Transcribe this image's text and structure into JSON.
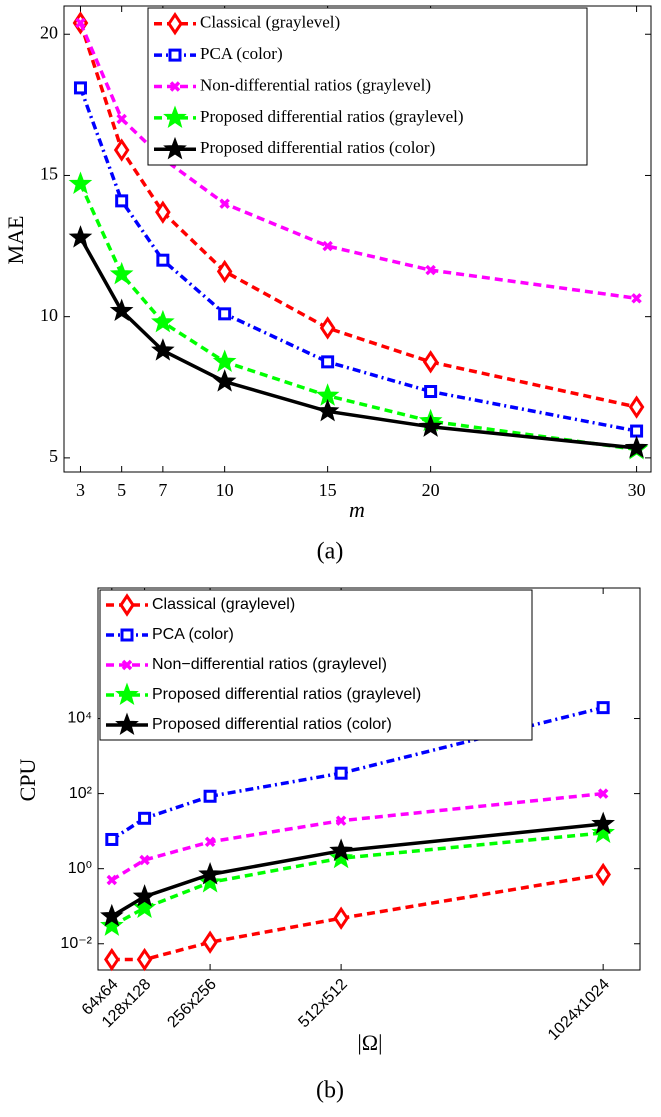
{
  "chart_data": [
    {
      "type": "line",
      "caption": "(a)",
      "xlabel": "m",
      "ylabel": "MAE",
      "x": [
        3,
        5,
        7,
        10,
        15,
        20,
        30
      ],
      "xlim": [
        2.2,
        30.7
      ],
      "ylim": [
        4.5,
        21
      ],
      "xticks": [
        3,
        5,
        7,
        10,
        15,
        20,
        30
      ],
      "yticks": [
        5,
        10,
        15,
        20
      ],
      "legend": "upper right",
      "log_y": false,
      "series": [
        {
          "name": "Classical (graylevel)",
          "color": "#ff0000",
          "marker": "diamond",
          "dash": "dash",
          "values": [
            20.4,
            15.9,
            13.7,
            11.6,
            9.6,
            8.4,
            6.8
          ]
        },
        {
          "name": "PCA (color)",
          "color": "#0000ff",
          "marker": "square",
          "dash": "dashdot",
          "values": [
            18.1,
            14.1,
            12.0,
            10.1,
            8.4,
            7.35,
            5.95
          ]
        },
        {
          "name": "Non-differential ratios (graylevel)",
          "color": "#ff00ff",
          "marker": "x",
          "dash": "dash",
          "values": [
            20.4,
            17.0,
            15.6,
            14.0,
            12.5,
            11.65,
            10.65
          ]
        },
        {
          "name": "Proposed differential ratios (graylevel)",
          "color": "#00ff00",
          "marker": "star",
          "dash": "dash",
          "values": [
            14.7,
            11.5,
            9.8,
            8.4,
            7.2,
            6.3,
            5.3
          ]
        },
        {
          "name": "Proposed differential ratios (color)",
          "color": "#000000",
          "marker": "star",
          "dash": "solid",
          "values": [
            12.8,
            10.2,
            8.8,
            7.7,
            6.65,
            6.1,
            5.35
          ]
        }
      ]
    },
    {
      "type": "line",
      "caption": "(b)",
      "xlabel": "|Ω|",
      "ylabel": "CPU",
      "x": [
        64,
        128,
        256,
        512,
        1024
      ],
      "xlim": [
        37,
        1096
      ],
      "ylim": [
        0.002,
        30000000
      ],
      "xticks": [
        {
          "value": 64,
          "label": "64x64"
        },
        {
          "value": 128,
          "label": "128x128"
        },
        {
          "value": 256,
          "label": "256x256"
        },
        {
          "value": 512,
          "label": "512x512"
        },
        {
          "value": 1024,
          "label": "1024x1024"
        }
      ],
      "yticks": [
        {
          "value": 0.01,
          "label": "10⁻²"
        },
        {
          "value": 1,
          "label": "10⁰"
        },
        {
          "value": 100,
          "label": "10²"
        },
        {
          "value": 10000,
          "label": "10⁴"
        }
      ],
      "legend": "upper left",
      "log_y": true,
      "series": [
        {
          "name": "Classical (graylevel)",
          "color": "#ff0000",
          "marker": "diamond",
          "dash": "dash",
          "values": [
            0.0038,
            0.0038,
            0.011,
            0.048,
            0.7
          ]
        },
        {
          "name": "PCA (color)",
          "color": "#0000ff",
          "marker": "square",
          "dash": "dashdot",
          "values": [
            6,
            22,
            85,
            350,
            19500
          ]
        },
        {
          "name": "Non−differential ratios (graylevel)",
          "color": "#ff00ff",
          "marker": "x",
          "dash": "dash",
          "values": [
            0.5,
            1.7,
            5.2,
            19,
            100
          ]
        },
        {
          "name": "Proposed differential ratios (graylevel)",
          "color": "#00ff00",
          "marker": "star",
          "dash": "dash",
          "values": [
            0.03,
            0.09,
            0.43,
            1.9,
            9
          ]
        },
        {
          "name": "Proposed differential ratios (color)",
          "color": "#000000",
          "marker": "star",
          "dash": "solid",
          "values": [
            0.054,
            0.18,
            0.7,
            3,
            15.5
          ]
        }
      ]
    }
  ]
}
